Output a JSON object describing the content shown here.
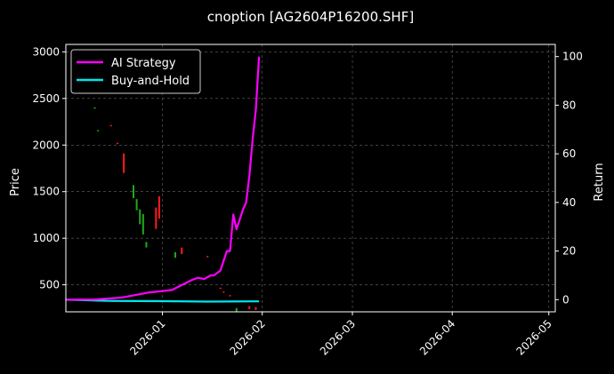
{
  "chart_data": {
    "type": "line",
    "title": "cnoption [AG2604P16200.SHF]",
    "ylabel_left": "Price",
    "ylabel_right": "Return",
    "grid": true,
    "legend_position": "top-left",
    "x_ticks": [
      "2026-01",
      "2026-02",
      "2026-03",
      "2026-04",
      "2026-05"
    ],
    "left_ticks": [
      500,
      1000,
      1500,
      2000,
      2500,
      3000
    ],
    "right_ticks": [
      0,
      20,
      40,
      60,
      80,
      100
    ],
    "ylim_left": [
      210,
      3080
    ],
    "ylim_right": [
      -5,
      105
    ],
    "xlim": [
      "2025-12-02",
      "2026-05-03"
    ],
    "series": [
      {
        "name": "AI Strategy",
        "color": "#ff00ff",
        "axis": "right",
        "x": [
          "2025-12-02",
          "2025-12-10",
          "2025-12-16",
          "2025-12-20",
          "2025-12-24",
          "2025-12-28",
          "2026-01-01",
          "2026-01-04",
          "2026-01-07",
          "2026-01-10",
          "2026-01-12",
          "2026-01-14",
          "2026-01-16",
          "2026-01-17",
          "2026-01-19",
          "2026-01-21",
          "2026-01-22",
          "2026-01-23",
          "2026-01-24",
          "2026-01-25",
          "2026-01-26",
          "2026-01-27",
          "2026-01-28",
          "2026-01-29",
          "2026-01-30",
          "2026-01-31"
        ],
        "values": [
          0,
          0,
          0.5,
          1,
          2,
          3,
          3.5,
          4,
          6,
          8,
          9,
          8.5,
          10,
          10,
          12,
          20,
          20,
          35,
          29,
          33,
          37,
          40,
          51,
          66,
          78,
          100
        ]
      },
      {
        "name": "Buy-and-Hold",
        "color": "#00e5ee",
        "axis": "right",
        "x": [
          "2025-12-02",
          "2025-12-15",
          "2026-01-01",
          "2026-01-15",
          "2026-01-31"
        ],
        "values": [
          0,
          -0.5,
          -0.6,
          -0.8,
          -0.7
        ]
      }
    ],
    "candles": {
      "up_color": "#ff1a1a",
      "down_color": "#1fa81f",
      "items": [
        {
          "date": "2025-12-11",
          "open": 2400,
          "close": 2405,
          "dir": "down"
        },
        {
          "date": "2025-12-12",
          "open": 2150,
          "close": 2160,
          "dir": "down"
        },
        {
          "date": "2025-12-16",
          "open": 2210,
          "close": 2215,
          "dir": "up"
        },
        {
          "date": "2025-12-18",
          "open": 2020,
          "close": 2025,
          "dir": "up"
        },
        {
          "date": "2025-12-20",
          "open": 1910,
          "close": 1700,
          "dir": "up"
        },
        {
          "date": "2025-12-23",
          "open": 1570,
          "close": 1430,
          "dir": "down"
        },
        {
          "date": "2025-12-24",
          "open": 1420,
          "close": 1300,
          "dir": "down"
        },
        {
          "date": "2025-12-25",
          "open": 1310,
          "close": 1150,
          "dir": "down"
        },
        {
          "date": "2025-12-26",
          "open": 1260,
          "close": 1040,
          "dir": "down"
        },
        {
          "date": "2025-12-27",
          "open": 960,
          "close": 900,
          "dir": "down"
        },
        {
          "date": "2025-12-30",
          "open": 1330,
          "close": 1100,
          "dir": "up"
        },
        {
          "date": "2025-12-31",
          "open": 1450,
          "close": 1210,
          "dir": "up"
        },
        {
          "date": "2026-01-05",
          "open": 850,
          "close": 790,
          "dir": "down"
        },
        {
          "date": "2026-01-07",
          "open": 900,
          "close": 830,
          "dir": "up"
        },
        {
          "date": "2026-01-15",
          "open": 810,
          "close": 805,
          "dir": "up"
        },
        {
          "date": "2026-01-19",
          "open": 470,
          "close": 465,
          "dir": "up"
        },
        {
          "date": "2026-01-20",
          "open": 430,
          "close": 425,
          "dir": "up"
        },
        {
          "date": "2026-01-22",
          "open": 390,
          "close": 385,
          "dir": "up"
        },
        {
          "date": "2026-01-24",
          "open": 250,
          "close": 215,
          "dir": "down"
        },
        {
          "date": "2026-01-28",
          "open": 270,
          "close": 240,
          "dir": "up"
        },
        {
          "date": "2026-01-30",
          "open": 260,
          "close": 230,
          "dir": "up"
        }
      ]
    }
  }
}
